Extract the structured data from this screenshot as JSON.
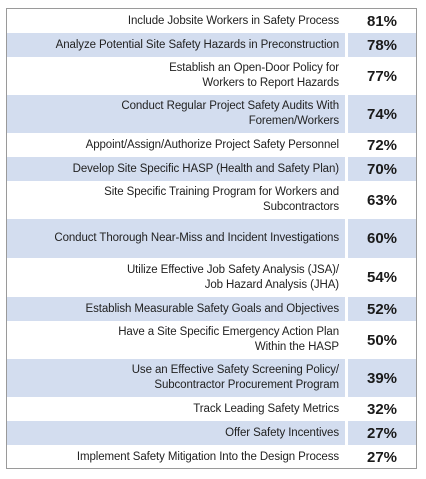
{
  "table": {
    "rows": [
      [
        "Include Jobsite Workers in Safety Process",
        "81%"
      ],
      [
        "Analyze Potential Site Safety Hazards in Preconstruction",
        "78%"
      ],
      [
        "Establish an Open-Door Policy for\nWorkers to Report Hazards",
        "77%"
      ],
      [
        "Conduct Regular Project Safety Audits With\nForemen/Workers",
        "74%"
      ],
      [
        "Appoint/Assign/Authorize Project Safety Personnel",
        "72%"
      ],
      [
        "Develop Site Specific HASP (Health and Safety Plan)",
        "70%"
      ],
      [
        "Site Specific Training Program for Workers and\nSubcontractors",
        "63%"
      ],
      [
        "Conduct Thorough Near-Miss and Incident Investigations",
        "60%"
      ],
      [
        "Utilize Effective Job Safety Analysis (JSA)/\nJob Hazard Analysis (JHA)",
        "54%"
      ],
      [
        "Establish Measurable Safety Goals and Objectives",
        "52%"
      ],
      [
        "Have a Site Specific Emergency Action Plan\nWithin the HASP",
        "50%"
      ],
      [
        "Use an Effective Safety Screening Policy/\nSubcontractor Procurement Program",
        "39%"
      ],
      [
        "Track Leading Safety Metrics",
        "32%"
      ],
      [
        "Offer Safety Incentives",
        "27%"
      ],
      [
        "Implement Safety Mitigation Into the Design Process",
        "27%"
      ]
    ]
  }
}
